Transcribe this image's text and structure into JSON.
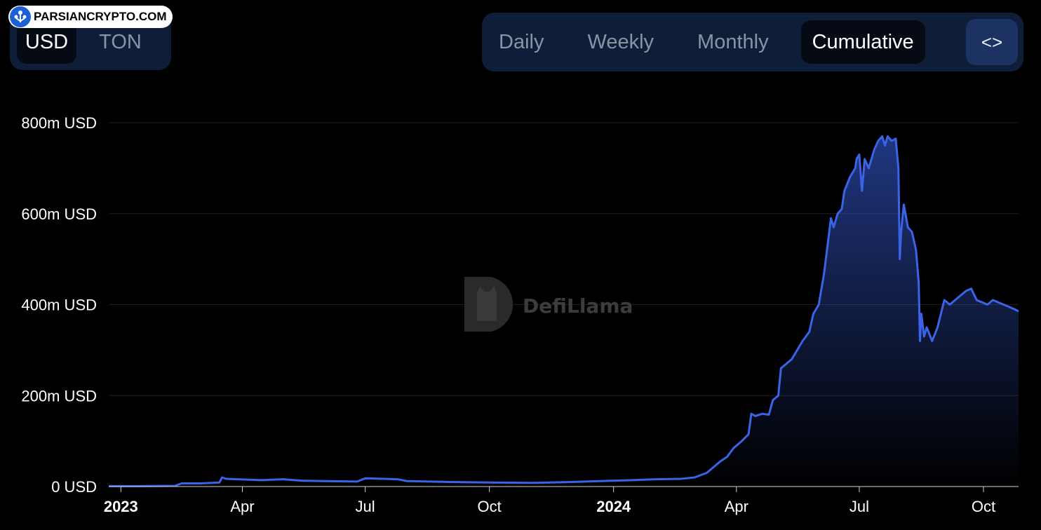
{
  "brand": {
    "logo_text": "PARSIANCRYPTO.COM"
  },
  "currency_toggle": {
    "options": [
      "USD",
      "TON"
    ],
    "selected": "USD"
  },
  "period_toggle": {
    "options": [
      "Daily",
      "Weekly",
      "Monthly",
      "Cumulative"
    ],
    "selected": "Cumulative",
    "embed_label": "<>"
  },
  "watermark": {
    "text": "DefiLlama"
  },
  "colors": {
    "line": "#3a63e8",
    "background": "#000000",
    "toggle_bg": "#0f1e38",
    "embed_bg": "#1c3263"
  },
  "chart_data": {
    "type": "area",
    "title": "",
    "xlabel": "",
    "ylabel": "",
    "ylim": [
      0,
      800
    ],
    "y_unit": "m USD",
    "y_ticks": [
      "0 USD",
      "200m USD",
      "400m USD",
      "600m USD",
      "800m USD"
    ],
    "y_tick_values": [
      0,
      200,
      400,
      600,
      800
    ],
    "x_range": [
      "2022-12-23",
      "2024-10-27"
    ],
    "x_ticks": [
      {
        "label": "2023",
        "date": "2023-01-01",
        "bold": true
      },
      {
        "label": "Apr",
        "date": "2023-04-01",
        "bold": false
      },
      {
        "label": "Jul",
        "date": "2023-07-01",
        "bold": false
      },
      {
        "label": "Oct",
        "date": "2023-10-01",
        "bold": false
      },
      {
        "label": "2024",
        "date": "2024-01-01",
        "bold": true
      },
      {
        "label": "Apr",
        "date": "2024-04-01",
        "bold": false
      },
      {
        "label": "Jul",
        "date": "2024-07-01",
        "bold": false
      },
      {
        "label": "Oct",
        "date": "2024-10-01",
        "bold": false
      }
    ],
    "grid": true,
    "series": [
      {
        "points": [
          [
            "2022-12-23",
            1
          ],
          [
            "2023-01-15",
            1
          ],
          [
            "2023-02-10",
            1.5
          ],
          [
            "2023-02-15",
            7
          ],
          [
            "2023-03-01",
            7
          ],
          [
            "2023-03-15",
            9
          ],
          [
            "2023-03-17",
            20
          ],
          [
            "2023-03-20",
            17
          ],
          [
            "2023-04-15",
            14
          ],
          [
            "2023-05-01",
            16
          ],
          [
            "2023-05-15",
            13
          ],
          [
            "2023-06-01",
            12
          ],
          [
            "2023-06-25",
            11
          ],
          [
            "2023-07-01",
            18
          ],
          [
            "2023-07-15",
            17
          ],
          [
            "2023-07-25",
            16
          ],
          [
            "2023-08-01",
            12
          ],
          [
            "2023-09-01",
            10
          ],
          [
            "2023-10-01",
            9
          ],
          [
            "2023-11-01",
            8
          ],
          [
            "2023-12-01",
            10
          ],
          [
            "2024-01-01",
            13
          ],
          [
            "2024-01-15",
            14
          ],
          [
            "2024-02-01",
            16
          ],
          [
            "2024-02-20",
            17
          ],
          [
            "2024-03-01",
            20
          ],
          [
            "2024-03-10",
            30
          ],
          [
            "2024-03-20",
            55
          ],
          [
            "2024-03-25",
            65
          ],
          [
            "2024-03-30",
            85
          ],
          [
            "2024-04-05",
            100
          ],
          [
            "2024-04-10",
            115
          ],
          [
            "2024-04-12",
            160
          ],
          [
            "2024-04-15",
            155
          ],
          [
            "2024-04-20",
            160
          ],
          [
            "2024-04-25",
            158
          ],
          [
            "2024-04-28",
            190
          ],
          [
            "2024-05-02",
            200
          ],
          [
            "2024-05-04",
            260
          ],
          [
            "2024-05-08",
            270
          ],
          [
            "2024-05-12",
            280
          ],
          [
            "2024-05-16",
            300
          ],
          [
            "2024-05-20",
            320
          ],
          [
            "2024-05-25",
            340
          ],
          [
            "2024-05-28",
            380
          ],
          [
            "2024-06-01",
            400
          ],
          [
            "2024-06-05",
            470
          ],
          [
            "2024-06-10",
            590
          ],
          [
            "2024-06-12",
            570
          ],
          [
            "2024-06-15",
            600
          ],
          [
            "2024-06-18",
            610
          ],
          [
            "2024-06-20",
            650
          ],
          [
            "2024-06-24",
            680
          ],
          [
            "2024-06-26",
            690
          ],
          [
            "2024-06-28",
            700
          ],
          [
            "2024-06-29",
            720
          ],
          [
            "2024-07-01",
            730
          ],
          [
            "2024-07-03",
            650
          ],
          [
            "2024-07-05",
            720
          ],
          [
            "2024-07-08",
            700
          ],
          [
            "2024-07-12",
            740
          ],
          [
            "2024-07-15",
            760
          ],
          [
            "2024-07-18",
            770
          ],
          [
            "2024-07-20",
            750
          ],
          [
            "2024-07-22",
            770
          ],
          [
            "2024-07-25",
            760
          ],
          [
            "2024-07-28",
            765
          ],
          [
            "2024-07-30",
            700
          ],
          [
            "2024-07-31",
            500
          ],
          [
            "2024-08-01",
            560
          ],
          [
            "2024-08-03",
            620
          ],
          [
            "2024-08-06",
            570
          ],
          [
            "2024-08-09",
            560
          ],
          [
            "2024-08-12",
            520
          ],
          [
            "2024-08-14",
            450
          ],
          [
            "2024-08-15",
            320
          ],
          [
            "2024-08-16",
            380
          ],
          [
            "2024-08-18",
            330
          ],
          [
            "2024-08-20",
            350
          ],
          [
            "2024-08-24",
            320
          ],
          [
            "2024-08-28",
            350
          ],
          [
            "2024-09-02",
            410
          ],
          [
            "2024-09-06",
            400
          ],
          [
            "2024-09-10",
            410
          ],
          [
            "2024-09-14",
            420
          ],
          [
            "2024-09-18",
            430
          ],
          [
            "2024-09-22",
            435
          ],
          [
            "2024-09-26",
            410
          ],
          [
            "2024-09-30",
            405
          ],
          [
            "2024-10-04",
            400
          ],
          [
            "2024-10-08",
            410
          ],
          [
            "2024-10-12",
            405
          ],
          [
            "2024-10-16",
            400
          ],
          [
            "2024-10-20",
            395
          ],
          [
            "2024-10-24",
            390
          ],
          [
            "2024-10-27",
            385
          ]
        ]
      }
    ]
  }
}
